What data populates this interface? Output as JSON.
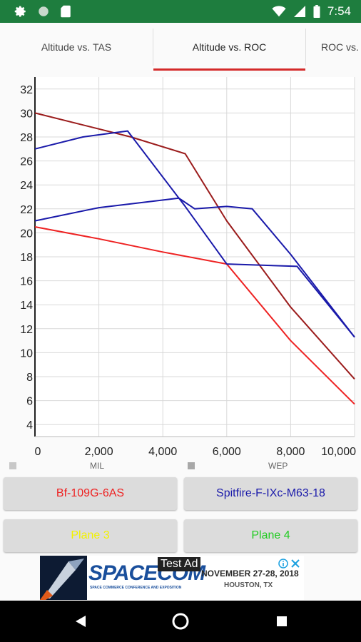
{
  "status_bar": {
    "time": "7:54",
    "icons": [
      "gear-icon",
      "circle-icon",
      "sd-card-icon",
      "wifi-icon",
      "signal-icon",
      "battery-icon"
    ]
  },
  "tabs": [
    {
      "label": "Altitude vs. TAS",
      "active": false
    },
    {
      "label": "Altitude vs. ROC",
      "active": true
    },
    {
      "label": "ROC vs. TAS",
      "active": false
    }
  ],
  "chart_data": {
    "type": "line",
    "xlim": [
      0,
      10000
    ],
    "ylim": [
      3,
      33
    ],
    "x_ticks": [
      0,
      2000,
      4000,
      6000,
      8000,
      10000
    ],
    "x_tick_labels": [
      "0",
      "2,000",
      "4,000",
      "6,000",
      "8,000",
      "10,000"
    ],
    "y_ticks": [
      4,
      6,
      8,
      10,
      12,
      14,
      16,
      18,
      20,
      22,
      24,
      26,
      28,
      30,
      32
    ],
    "grid": true,
    "series": [
      {
        "color": "#9b1c1c",
        "points": [
          [
            0,
            30
          ],
          [
            1500,
            29
          ],
          [
            3000,
            28
          ],
          [
            4700,
            26.6
          ],
          [
            6000,
            21
          ],
          [
            8000,
            13.8
          ],
          [
            10000,
            7.8
          ]
        ]
      },
      {
        "color": "#ee2222",
        "points": [
          [
            0,
            20.5
          ],
          [
            2000,
            19.5
          ],
          [
            4000,
            18.4
          ],
          [
            6000,
            17.4
          ],
          [
            8000,
            11
          ],
          [
            10000,
            5.7
          ]
        ]
      },
      {
        "color": "#1a1aaa",
        "points": [
          [
            0,
            27
          ],
          [
            1500,
            28
          ],
          [
            2900,
            28.5
          ],
          [
            4700,
            22.2
          ],
          [
            6000,
            17.4
          ],
          [
            8200,
            17.2
          ],
          [
            10000,
            11.3
          ]
        ]
      },
      {
        "color": "#1a1aaa",
        "points": [
          [
            0,
            21
          ],
          [
            2000,
            22.1
          ],
          [
            4500,
            22.9
          ],
          [
            5000,
            22
          ],
          [
            6000,
            22.2
          ],
          [
            6800,
            22
          ],
          [
            8000,
            18.2
          ],
          [
            10000,
            11.3
          ]
        ]
      }
    ]
  },
  "legend": {
    "mil_label": "MIL",
    "wep_label": "WEP"
  },
  "planes": [
    {
      "label": "Bf-109G-6AS",
      "color": "#ee2222"
    },
    {
      "label": "Spitfire-F-IXc-M63-18",
      "color": "#1a1aaa"
    },
    {
      "label": "Plane 3",
      "color": "#f2f200"
    },
    {
      "label": "Plane 4",
      "color": "#22cc22"
    }
  ],
  "ad": {
    "badge": "Test Ad",
    "brand": "SPACECOM",
    "tagline": "SPACE COMMERCE CONFERENCE AND EXPOSITION",
    "date": "NOVEMBER 27-28, 2018",
    "location": "HOUSTON, TX"
  }
}
